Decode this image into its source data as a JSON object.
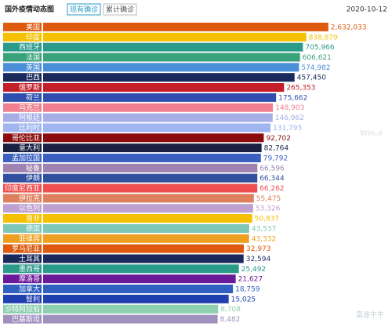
{
  "chart_data": {
    "type": "bar",
    "orientation": "horizontal",
    "title": "国外疫情动态图",
    "tabs": [
      "现有确诊",
      "累计确诊"
    ],
    "active_tab": 0,
    "date": "2020-10-12",
    "watermarks": [
      "Win.d",
      "富途牛牛"
    ],
    "log_scale": true,
    "xlim": [
      1,
      3000000
    ],
    "categories": [
      "美国",
      "印度",
      "西班牙",
      "法国",
      "英国",
      "巴西",
      "俄罗斯",
      "荷兰",
      "乌克兰",
      "阿根廷",
      "比利时",
      "哥伦比亚",
      "意大利",
      "孟加拉国",
      "秘鲁",
      "伊朗",
      "印度尼西亚",
      "伊拉克",
      "以色列",
      "南非",
      "德国",
      "菲律宾",
      "罗马尼亚",
      "土耳其",
      "墨西哥",
      "摩洛哥",
      "加拿大",
      "智利",
      "沙特阿拉伯",
      "巴基斯坦"
    ],
    "values": [
      2632033,
      838879,
      705966,
      606621,
      574982,
      457450,
      265353,
      175662,
      148903,
      146962,
      131795,
      92702,
      82764,
      79792,
      66596,
      66344,
      66262,
      55475,
      53326,
      50837,
      43537,
      43332,
      32973,
      32594,
      25492,
      21627,
      18759,
      15025,
      8708,
      8482
    ],
    "value_labels": [
      "2,632,033",
      "838,879",
      "705,966",
      "606,621",
      "574,982",
      "457,450",
      "265,353",
      "175,662",
      "148,903",
      "146,962",
      "131,795",
      "92,702",
      "82,764",
      "79,792",
      "66,596",
      "66,344",
      "66,262",
      "55,475",
      "53,326",
      "50,837",
      "43,537",
      "43,332",
      "32,973",
      "32,594",
      "25,492",
      "21,627",
      "18,759",
      "15,025",
      "8,708",
      "8,482"
    ],
    "colors": [
      "#dd5a0e",
      "#f5c000",
      "#2a9a8a",
      "#3aa27a",
      "#4a8fd8",
      "#1a2a5c",
      "#c41e2a",
      "#2f4fae",
      "#f0808f",
      "#a6aee6",
      "#9fb6ee",
      "#8a0c0c",
      "#1b2142",
      "#3a5fc0",
      "#9f82b0",
      "#3150a0",
      "#ef4f4f",
      "#de7f5e",
      "#bfa0d0",
      "#f5c000",
      "#7ec6b6",
      "#ef9f20",
      "#dd5a0e",
      "#1a2a5c",
      "#2a9a8a",
      "#6a1a98",
      "#3060c0",
      "#2040b0",
      "#8ecfae",
      "#a090c0"
    ]
  }
}
